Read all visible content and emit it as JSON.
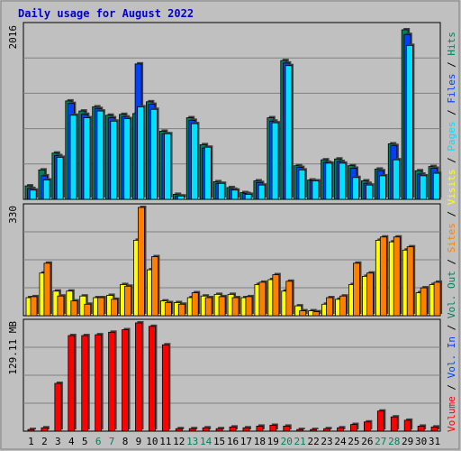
{
  "title": "Daily usage for August 2022",
  "colors": {
    "background": "#c0c0c0",
    "plot_bg": "#c0c0c0",
    "title": "#0000cc",
    "hits": "#00805c",
    "files": "#0040ff",
    "pages": "#00e0ff",
    "visits": "#ffff00",
    "sites": "#ff8000",
    "kbytes": "#ff0000",
    "weekend_label": "#00805c",
    "label": "#000000"
  },
  "chart_data": [
    {
      "type": "bar",
      "name": "hits-files-pages",
      "categories": [
        "1",
        "2",
        "3",
        "4",
        "5",
        "6",
        "7",
        "8",
        "9",
        "10",
        "11",
        "12",
        "13",
        "14",
        "15",
        "16",
        "17",
        "18",
        "19",
        "20",
        "21",
        "22",
        "23",
        "24",
        "25",
        "26",
        "27",
        "28",
        "29",
        "30",
        "31"
      ],
      "weekend": [
        "6",
        "7",
        "13",
        "14",
        "20",
        "21",
        "27",
        "28"
      ],
      "ylabel": "2016",
      "ylim": [
        0,
        2016
      ],
      "series": [
        {
          "name": "Hits",
          "values": [
            160,
            350,
            550,
            1170,
            1050,
            1100,
            1000,
            1010,
            1020,
            1160,
            810,
            60,
            970,
            650,
            210,
            140,
            80,
            220,
            970,
            1650,
            400,
            230,
            470,
            480,
            400,
            220,
            360,
            660,
            2016,
            340,
            390
          ]
        },
        {
          "name": "Files",
          "values": [
            130,
            280,
            520,
            1140,
            1010,
            1080,
            970,
            980,
            1610,
            1130,
            780,
            40,
            940,
            610,
            190,
            120,
            70,
            200,
            930,
            1620,
            380,
            220,
            440,
            450,
            370,
            190,
            340,
            640,
            1960,
            300,
            370
          ]
        },
        {
          "name": "Pages",
          "values": [
            110,
            230,
            500,
            1000,
            970,
            1050,
            930,
            960,
            1100,
            1070,
            780,
            40,
            900,
            620,
            190,
            110,
            60,
            170,
            910,
            1590,
            350,
            220,
            430,
            430,
            260,
            170,
            280,
            470,
            1830,
            280,
            310
          ]
        }
      ]
    },
    {
      "type": "bar",
      "name": "visits-sites",
      "categories": [
        "1",
        "2",
        "3",
        "4",
        "5",
        "6",
        "7",
        "8",
        "9",
        "10",
        "11",
        "12",
        "13",
        "14",
        "15",
        "16",
        "17",
        "18",
        "19",
        "20",
        "21",
        "22",
        "23",
        "24",
        "25",
        "26",
        "27",
        "28",
        "29",
        "30",
        "31"
      ],
      "ylabel": "330",
      "ylim": [
        0,
        330
      ],
      "series": [
        {
          "name": "Visits",
          "values": [
            55,
            130,
            75,
            75,
            60,
            55,
            62,
            95,
            230,
            140,
            45,
            40,
            55,
            60,
            65,
            65,
            55,
            95,
            110,
            75,
            30,
            15,
            35,
            50,
            95,
            120,
            230,
            225,
            200,
            70,
            95
          ]
        },
        {
          "name": "Sites",
          "values": [
            58,
            160,
            60,
            45,
            35,
            55,
            50,
            90,
            330,
            180,
            40,
            35,
            70,
            55,
            58,
            55,
            58,
            102,
            125,
            105,
            15,
            12,
            55,
            60,
            160,
            130,
            240,
            240,
            210,
            85,
            102
          ]
        }
      ]
    },
    {
      "type": "bar",
      "name": "kbytes",
      "categories": [
        "1",
        "2",
        "3",
        "4",
        "5",
        "6",
        "7",
        "8",
        "9",
        "10",
        "11",
        "12",
        "13",
        "14",
        "15",
        "16",
        "17",
        "18",
        "19",
        "20",
        "21",
        "22",
        "23",
        "24",
        "25",
        "26",
        "27",
        "28",
        "29",
        "30",
        "31"
      ],
      "ylabel": "129.11 MB",
      "ylim": [
        0,
        129.11
      ],
      "series": [
        {
          "name": "Volume",
          "values": [
            2,
            4,
            57,
            114,
            114,
            115,
            118,
            121,
            129.11,
            125,
            103,
            3,
            3,
            4,
            3,
            5,
            4,
            6,
            7,
            6,
            2,
            2,
            3,
            4,
            8,
            11,
            24,
            17,
            13,
            6,
            5
          ]
        }
      ]
    }
  ],
  "legend_top": [
    {
      "key": "hits",
      "text": "Hits"
    },
    {
      "key": "sep",
      "text": "/"
    },
    {
      "key": "files",
      "text": "Files"
    },
    {
      "key": "sep",
      "text": "/"
    },
    {
      "key": "pages",
      "text": "Pages"
    },
    {
      "key": "sep",
      "text": "/"
    },
    {
      "key": "visits",
      "text": "Visits"
    },
    {
      "key": "sep",
      "text": "/"
    },
    {
      "key": "sites",
      "text": "Sites"
    },
    {
      "key": "sep",
      "text": "/"
    },
    {
      "key": "hits",
      "text": "Out"
    },
    {
      "key": "sep",
      "text": "/"
    }
  ],
  "legend_bottom": [
    {
      "key": "files",
      "text": "In"
    },
    {
      "key": "sep",
      "text": "/"
    },
    {
      "key": "kbytes",
      "text": "Vol."
    }
  ],
  "legend_full": "Volume / Vol. In / Vol. Out / Sites / Visits / Pages / Files / Hits",
  "legend_parts": [
    {
      "key": "kbytes",
      "text": "Volume"
    },
    {
      "key": "sep",
      "text": "/"
    },
    {
      "key": "files",
      "text": "Vol. In"
    },
    {
      "key": "sep",
      "text": "/"
    },
    {
      "key": "hits",
      "text": "Vol. Out"
    },
    {
      "key": "sep",
      "text": "/"
    },
    {
      "key": "sites",
      "text": "Sites"
    },
    {
      "key": "sep",
      "text": "/"
    },
    {
      "key": "visits",
      "text": "Visits"
    },
    {
      "key": "sep",
      "text": "/"
    },
    {
      "key": "pages",
      "text": "Pages"
    },
    {
      "key": "sep",
      "text": "/"
    },
    {
      "key": "files",
      "text": "Files"
    },
    {
      "key": "sep",
      "text": "/"
    },
    {
      "key": "hits",
      "text": "Hits"
    }
  ]
}
